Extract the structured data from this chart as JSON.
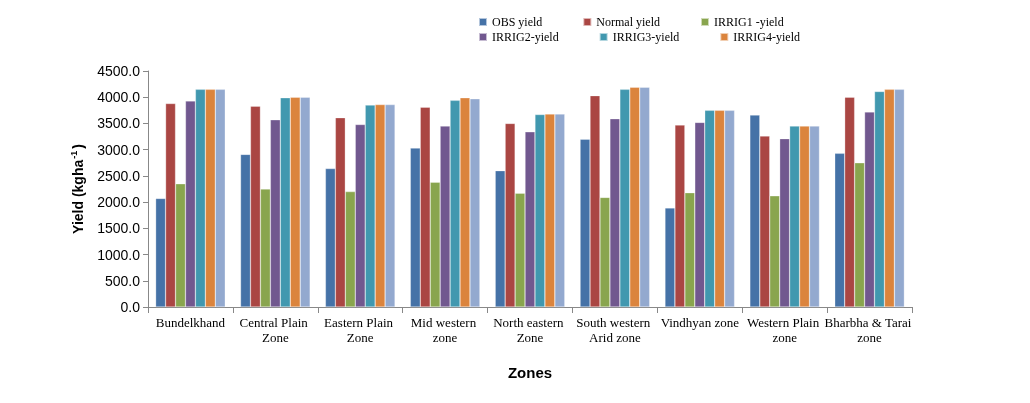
{
  "chart_data": {
    "type": "bar",
    "xlabel": "Zones",
    "ylabel": "Yield (kgha$^{-1}$)",
    "categories": [
      "Bundelkhand",
      "Central Plain Zone",
      "Eastern Plain Zone",
      "Mid western zone",
      "North eastern Zone",
      "South western Arid zone",
      "Vindhyan zone",
      "Western Plain zone",
      "Bharbha & Tarai zone"
    ],
    "series": [
      {
        "name": "OBS yield",
        "color": "#4572a7",
        "values": [
          2070,
          2910,
          2640,
          3030,
          2600,
          3200,
          1890,
          3660,
          2930
        ]
      },
      {
        "name": "Normal yield",
        "color": "#aa4643",
        "values": [
          3880,
          3830,
          3610,
          3810,
          3500,
          4030,
          3470,
          3260,
          4000
        ]
      },
      {
        "name": "IRRIG1 -yield",
        "color": "#89a54e",
        "values": [
          2350,
          2250,
          2200,
          2380,
          2170,
          2090,
          2180,
          2120,
          2750
        ]
      },
      {
        "name": "IRRIG2-yield",
        "color": "#71588f",
        "values": [
          3930,
          3570,
          3480,
          3450,
          3340,
          3590,
          3520,
          3210,
          3720
        ]
      },
      {
        "name": "IRRIG3-yield",
        "color": "#4198af",
        "values": [
          4150,
          3990,
          3850,
          3940,
          3670,
          4150,
          3750,
          3450,
          4110
        ]
      },
      {
        "name": "IRRIG4-yield",
        "color": "#db843d",
        "values": [
          4150,
          4000,
          3860,
          3990,
          3680,
          4190,
          3750,
          3450,
          4150
        ]
      },
      {
        "color": "#93a9cf",
        "values": [
          4150,
          4000,
          3860,
          3970,
          3680,
          4190,
          3750,
          3450,
          4150
        ]
      }
    ],
    "ylim": [
      0,
      4500
    ],
    "yticks": [
      {
        "value": 0,
        "label": "0.0"
      },
      {
        "value": 500,
        "label": "500.0"
      },
      {
        "value": 1000,
        "label": "1000.0"
      },
      {
        "value": 1500,
        "label": "1500.0"
      },
      {
        "value": 2000,
        "label": "2000.0"
      },
      {
        "value": 2500,
        "label": "2500.0"
      },
      {
        "value": 3000,
        "label": "3000.0"
      },
      {
        "value": 3500,
        "label": "3500.0"
      },
      {
        "value": 4000,
        "label": "4000.0"
      },
      {
        "value": 4500,
        "label": "4500.0"
      }
    ],
    "grid": false,
    "legend": "top"
  }
}
